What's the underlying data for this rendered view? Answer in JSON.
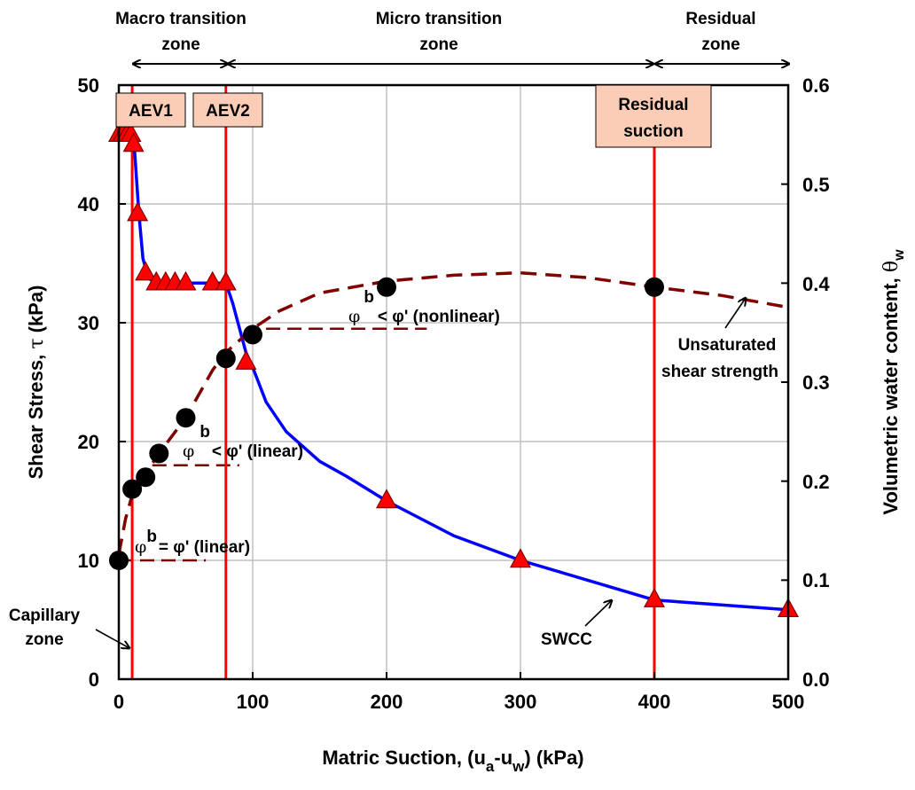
{
  "chart_data": {
    "type": "scatter",
    "xlabel": {
      "main": "Matric Suction, (u",
      "sub1": "a",
      "mid": "-u",
      "sub2": "w",
      "end": ") (kPa)"
    },
    "ylabel_left": {
      "main": "Shear Stress, ",
      "symbol": "τ",
      "end": " (kPa)"
    },
    "ylabel_right": {
      "main": "Volumetric water content, ",
      "symbol": "θ",
      "sub": "w"
    },
    "xlim": [
      0,
      500
    ],
    "ylim_left": [
      0,
      50
    ],
    "ylim_right": [
      0.0,
      0.6
    ],
    "x_ticks": [
      "0",
      "100",
      "200",
      "300",
      "400",
      "500"
    ],
    "y_left_ticks": [
      "0",
      "10",
      "20",
      "30",
      "40",
      "50"
    ],
    "y_right_ticks": [
      "0.0",
      "0.1",
      "0.2",
      "0.3",
      "0.4",
      "0.5",
      "0.6"
    ],
    "grid": true,
    "series": [
      {
        "kind": "points",
        "marker": "circle",
        "color": "#000000",
        "axis": "left",
        "x": [
          0,
          10,
          20,
          30,
          50,
          80,
          100,
          200,
          400
        ],
        "y": [
          10,
          16,
          17,
          19,
          22,
          27,
          29,
          33,
          33
        ]
      },
      {
        "kind": "points",
        "marker": "triangle",
        "color": "#ff0000",
        "axis": "right",
        "x": [
          0,
          3,
          6,
          9,
          11,
          14,
          20,
          28,
          35,
          42,
          50,
          70,
          80,
          95,
          200,
          300,
          400,
          500
        ],
        "y": [
          0.55,
          0.55,
          0.55,
          0.55,
          0.54,
          0.47,
          0.41,
          0.4,
          0.4,
          0.4,
          0.4,
          0.4,
          0.4,
          0.32,
          0.18,
          0.12,
          0.08,
          0.07
        ]
      },
      {
        "kind": "line",
        "style": "solid",
        "color": "#0000ff",
        "axis": "right",
        "x": [
          0,
          11,
          13,
          15,
          18,
          22,
          28,
          40,
          60,
          80,
          85,
          90,
          95,
          100,
          110,
          125,
          150,
          170,
          200,
          250,
          300,
          350,
          400,
          450,
          500
        ],
        "y": [
          0.55,
          0.55,
          0.51,
          0.47,
          0.425,
          0.405,
          0.4,
          0.4,
          0.4,
          0.4,
          0.38,
          0.355,
          0.33,
          0.315,
          0.28,
          0.25,
          0.22,
          0.205,
          0.18,
          0.145,
          0.12,
          0.1,
          0.08,
          0.075,
          0.07
        ]
      },
      {
        "kind": "line",
        "style": "dashed",
        "color": "#800000",
        "axis": "left",
        "x": [
          0,
          5,
          10,
          15,
          20,
          30,
          40,
          50,
          60,
          70,
          80,
          90,
          100,
          120,
          150,
          200,
          250,
          300,
          350,
          400,
          450,
          500
        ],
        "y": [
          10.5,
          13.5,
          15.5,
          16.5,
          17.3,
          19,
          20.5,
          22,
          24,
          26,
          27.5,
          28.5,
          29.5,
          31,
          32.5,
          33.5,
          34,
          34.2,
          33.8,
          33,
          32.3,
          31.3
        ]
      }
    ],
    "vertical_lines": [
      {
        "x": 10,
        "color": "#ff0000"
      },
      {
        "x": 80,
        "color": "#ff0000"
      },
      {
        "x": 400,
        "color": "#ff0000"
      }
    ],
    "slope_lines": [
      {
        "x": [
          0,
          65
        ],
        "y": 10
      },
      {
        "x": [
          25,
          90
        ],
        "y": 18
      },
      {
        "x": [
          110,
          230
        ],
        "y": 29.5
      }
    ],
    "labels": {
      "aev1": "AEV1",
      "aev2": "AEV2",
      "residual_suction": [
        "Residual",
        "suction"
      ],
      "macro_zone": [
        "Macro transition",
        "zone"
      ],
      "micro_zone": [
        "Micro transition",
        "zone"
      ],
      "residual_zone": [
        "Residual",
        "zone"
      ],
      "capillary_zone": [
        "Capillary",
        "zone"
      ],
      "swcc": "SWCC",
      "unsat_strength": [
        "Unsaturated",
        "shear strength"
      ],
      "phi_b_label": {
        "phi": "φ",
        "b": "b"
      },
      "eq_linear": "= φ' (linear)",
      "lt_linear": "< φ' (linear)",
      "lt_nonlinear": "< φ' (nonlinear)"
    },
    "colors": {
      "swcc": "#0000ff",
      "strength": "#800000",
      "vline": "#ff0000",
      "triangle": "#ff0000",
      "label_box": "#fbcdb6"
    }
  }
}
